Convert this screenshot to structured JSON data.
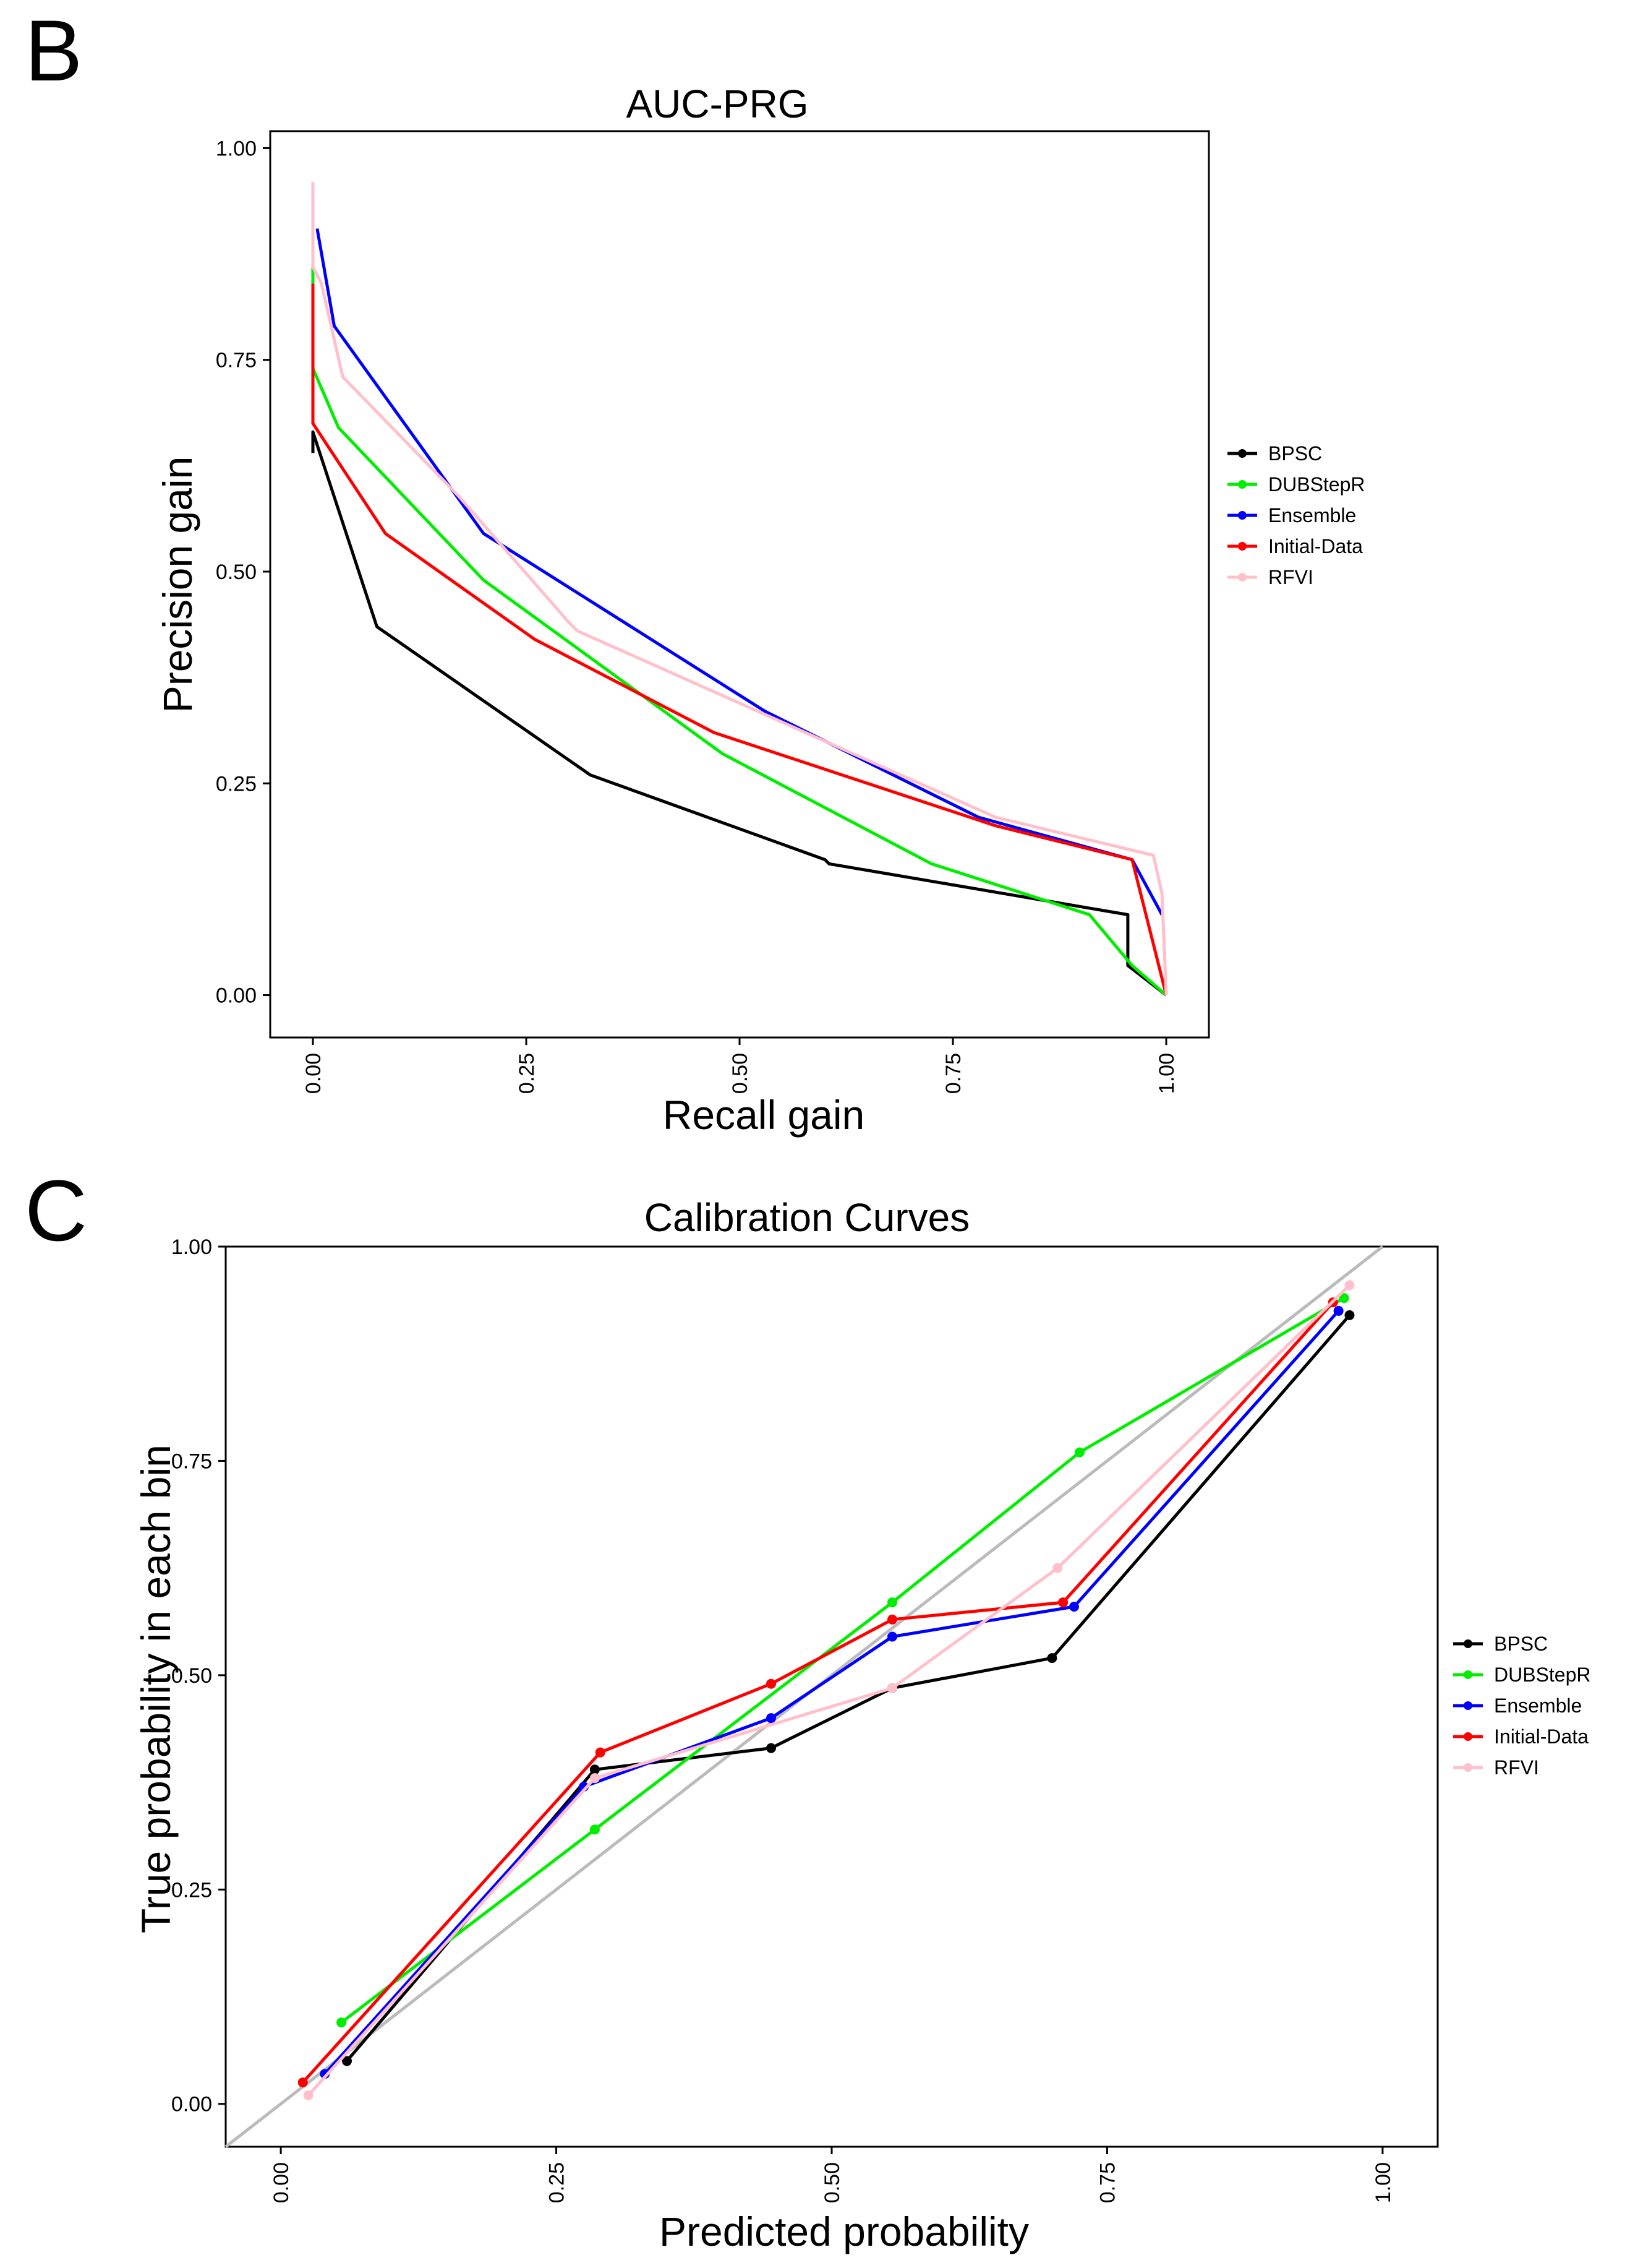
{
  "panels": [
    {
      "panel_label": "B",
      "legend_placement": "right",
      "chart_data": {
        "type": "line",
        "title": "AUC-PRG",
        "xlabel": "Recall gain",
        "ylabel": "Precision gain",
        "xlim": [
          -0.05,
          1.05
        ],
        "ylim": [
          -0.05,
          1.02
        ],
        "xticks": [
          0.0,
          0.25,
          0.5,
          0.75,
          1.0
        ],
        "xtick_labels": [
          "0.00",
          "0.25",
          "0.50",
          "0.75",
          "1.00"
        ],
        "yticks": [
          0.0,
          0.25,
          0.5,
          0.75,
          1.0
        ],
        "ytick_labels": [
          "0.00",
          "0.25",
          "0.50",
          "0.75",
          "1.00"
        ],
        "grid": false,
        "show_markers": false,
        "series": [
          {
            "name": "BPSC",
            "color": "#000000",
            "points": [
              [
                0,
                0.64
              ],
              [
                0,
                0.665
              ],
              [
                0.075,
                0.435
              ],
              [
                0.325,
                0.26
              ],
              [
                0.6,
                0.16
              ],
              [
                0.605,
                0.155
              ],
              [
                0.955,
                0.095
              ],
              [
                0.955,
                0.035
              ],
              [
                1.0,
                0.0
              ]
            ]
          },
          {
            "name": "DUBStepR",
            "color": "#00ee00",
            "points": [
              [
                0,
                0.85
              ],
              [
                0,
                0.87
              ],
              [
                0,
                0.74
              ],
              [
                0.03,
                0.67
              ],
              [
                0.2,
                0.49
              ],
              [
                0.48,
                0.285
              ],
              [
                0.725,
                0.155
              ],
              [
                0.91,
                0.095
              ],
              [
                0.96,
                0.035
              ],
              [
                1.0,
                0.0
              ]
            ]
          },
          {
            "name": "Ensemble",
            "color": "#0000ff",
            "points": [
              [
                0.005,
                0.905
              ],
              [
                0.025,
                0.79
              ],
              [
                0.2,
                0.545
              ],
              [
                0.53,
                0.335
              ],
              [
                0.78,
                0.21
              ],
              [
                0.96,
                0.16
              ],
              [
                0.995,
                0.095
              ]
            ]
          },
          {
            "name": "Initial-Data",
            "color": "#ff0000",
            "points": [
              [
                0,
                0.84
              ],
              [
                0,
                0.675
              ],
              [
                0.085,
                0.545
              ],
              [
                0.26,
                0.42
              ],
              [
                0.47,
                0.31
              ],
              [
                0.8,
                0.2
              ],
              [
                0.96,
                0.16
              ],
              [
                1.0,
                0.0
              ]
            ]
          },
          {
            "name": "RFVI",
            "color": "#ffc0cb",
            "points": [
              [
                0,
                0.96
              ],
              [
                0,
                0.86
              ],
              [
                0.01,
                0.84
              ],
              [
                0.035,
                0.73
              ],
              [
                0.17,
                0.59
              ],
              [
                0.3,
                0.44
              ],
              [
                0.31,
                0.43
              ],
              [
                0.8,
                0.21
              ],
              [
                0.985,
                0.165
              ],
              [
                0.995,
                0.12
              ],
              [
                1.0,
                0.0
              ]
            ]
          }
        ]
      }
    },
    {
      "panel_label": "C",
      "legend_placement": "right",
      "chart_data": {
        "type": "line",
        "title": "Calibration Curves",
        "xlabel": "Predicted probability",
        "ylabel": "True probability in each bin",
        "xlim": [
          -0.05,
          1.05
        ],
        "ylim": [
          -0.05,
          1.0
        ],
        "xticks": [
          0.0,
          0.25,
          0.5,
          0.75,
          1.0
        ],
        "xtick_labels": [
          "0.00",
          "0.25",
          "0.50",
          "0.75",
          "1.00"
        ],
        "yticks": [
          0.0,
          0.25,
          0.5,
          0.75,
          1.0
        ],
        "ytick_labels": [
          "0.00",
          "0.25",
          "0.50",
          "0.75",
          "1.00"
        ],
        "grid": false,
        "show_markers": true,
        "reference_line": {
          "from": [
            -0.05,
            -0.05
          ],
          "to": [
            1.0,
            1.0
          ],
          "color": "#bbbbbb"
        },
        "series": [
          {
            "name": "BPSC",
            "color": "#000000",
            "points": [
              [
                0.06,
                0.05
              ],
              [
                0.285,
                0.39
              ],
              [
                0.445,
                0.415
              ],
              [
                0.555,
                0.485
              ],
              [
                0.7,
                0.52
              ],
              [
                0.97,
                0.92
              ]
            ]
          },
          {
            "name": "DUBStepR",
            "color": "#00ee00",
            "points": [
              [
                0.055,
                0.095
              ],
              [
                0.285,
                0.32
              ],
              [
                0.555,
                0.585
              ],
              [
                0.725,
                0.76
              ],
              [
                0.965,
                0.94
              ]
            ]
          },
          {
            "name": "Ensemble",
            "color": "#0000ff",
            "points": [
              [
                0.04,
                0.035
              ],
              [
                0.275,
                0.37
              ],
              [
                0.445,
                0.45
              ],
              [
                0.555,
                0.545
              ],
              [
                0.72,
                0.58
              ],
              [
                0.96,
                0.925
              ]
            ]
          },
          {
            "name": "Initial-Data",
            "color": "#ff0000",
            "points": [
              [
                0.02,
                0.025
              ],
              [
                0.29,
                0.41
              ],
              [
                0.445,
                0.49
              ],
              [
                0.555,
                0.565
              ],
              [
                0.71,
                0.585
              ],
              [
                0.955,
                0.935
              ]
            ]
          },
          {
            "name": "RFVI",
            "color": "#ffc0cb",
            "points": [
              [
                0.025,
                0.01
              ],
              [
                0.285,
                0.38
              ],
              [
                0.555,
                0.485
              ],
              [
                0.705,
                0.625
              ],
              [
                0.97,
                0.955
              ]
            ]
          }
        ]
      }
    }
  ]
}
